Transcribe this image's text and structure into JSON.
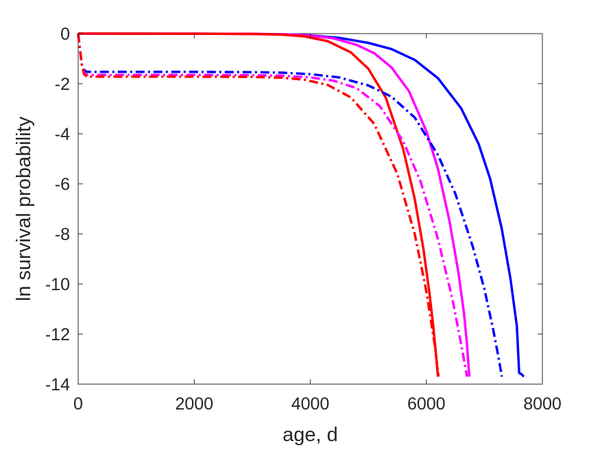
{
  "chart_data": {
    "type": "line",
    "title": "",
    "xlabel": "age, d",
    "ylabel": "ln survival probability",
    "xlim": [
      0,
      8000
    ],
    "ylim": [
      -14,
      0
    ],
    "xticks": [
      0,
      2000,
      4000,
      6000,
      8000
    ],
    "yticks": [
      0,
      -2,
      -4,
      -6,
      -8,
      -10,
      -12,
      -14
    ],
    "xtick_labels": [
      "0",
      "2000",
      "4000",
      "6000",
      "8000"
    ],
    "ytick_labels": [
      "0",
      "-2",
      "-4",
      "-6",
      "-8",
      "-10",
      "-12",
      "-14"
    ],
    "grid": false,
    "legend": "none",
    "series": [
      {
        "color": "#0000ff",
        "style": "solid",
        "x": [
          0,
          2000,
          3000,
          3600,
          4000,
          4500,
          5000,
          5400,
          5800,
          6200,
          6600,
          6900,
          7100,
          7300,
          7450,
          7560,
          7600,
          7640,
          7680
        ],
        "y": [
          0,
          -0.002,
          -0.01,
          -0.03,
          -0.07,
          -0.17,
          -0.37,
          -0.62,
          -1.05,
          -1.78,
          -2.98,
          -4.4,
          -5.8,
          -7.8,
          -9.8,
          -11.7,
          -13.55,
          -13.6,
          -13.7
        ]
      },
      {
        "color": "#ff00ff",
        "style": "solid",
        "x": [
          0,
          2000,
          3000,
          3600,
          4000,
          4400,
          4800,
          5100,
          5400,
          5700,
          6000,
          6200,
          6400,
          6550,
          6650,
          6700,
          6740
        ],
        "y": [
          0,
          -0.002,
          -0.01,
          -0.03,
          -0.08,
          -0.19,
          -0.45,
          -0.78,
          -1.35,
          -2.3,
          -3.9,
          -5.4,
          -7.5,
          -9.5,
          -11.2,
          -12.4,
          -13.7
        ]
      },
      {
        "color": "#ff0000",
        "style": "solid",
        "x": [
          0,
          2000,
          3000,
          3500,
          3900,
          4300,
          4700,
          5000,
          5300,
          5600,
          5800,
          5950,
          6050,
          6120,
          6170,
          6200
        ],
        "y": [
          0,
          -0.003,
          -0.015,
          -0.04,
          -0.11,
          -0.3,
          -0.75,
          -1.4,
          -2.55,
          -4.6,
          -6.6,
          -8.6,
          -10.3,
          -11.7,
          -12.9,
          -13.7
        ]
      },
      {
        "color": "#0000ff",
        "style": "dashdot",
        "x": [
          0,
          30,
          60,
          100,
          150,
          1000,
          2000,
          3000,
          3500,
          4000,
          4500,
          5000,
          5400,
          5800,
          6200,
          6500,
          6800,
          7000,
          7150,
          7250,
          7300
        ],
        "y": [
          0,
          -0.6,
          -1.2,
          -1.45,
          -1.53,
          -1.53,
          -1.53,
          -1.54,
          -1.56,
          -1.62,
          -1.75,
          -2.07,
          -2.52,
          -3.35,
          -4.85,
          -6.4,
          -8.5,
          -10.2,
          -11.8,
          -13.0,
          -13.7
        ]
      },
      {
        "color": "#ff00ff",
        "style": "dashdot",
        "x": [
          0,
          30,
          60,
          100,
          150,
          1000,
          2000,
          3000,
          3500,
          4000,
          4400,
          4800,
          5200,
          5600,
          5900,
          6200,
          6450,
          6600,
          6700
        ],
        "y": [
          0,
          -0.6,
          -1.2,
          -1.55,
          -1.65,
          -1.65,
          -1.65,
          -1.66,
          -1.68,
          -1.75,
          -1.88,
          -2.18,
          -2.9,
          -4.3,
          -5.9,
          -8.2,
          -10.6,
          -12.4,
          -13.7
        ]
      },
      {
        "color": "#ff0000",
        "style": "dashdot",
        "x": [
          0,
          30,
          60,
          100,
          150,
          1000,
          2000,
          3000,
          3500,
          3900,
          4300,
          4700,
          5100,
          5500,
          5800,
          6000,
          6150,
          6210
        ],
        "y": [
          0,
          -0.6,
          -1.2,
          -1.62,
          -1.72,
          -1.72,
          -1.72,
          -1.73,
          -1.76,
          -1.84,
          -2.05,
          -2.55,
          -3.6,
          -5.6,
          -8.0,
          -10.3,
          -12.5,
          -13.7
        ]
      }
    ]
  }
}
